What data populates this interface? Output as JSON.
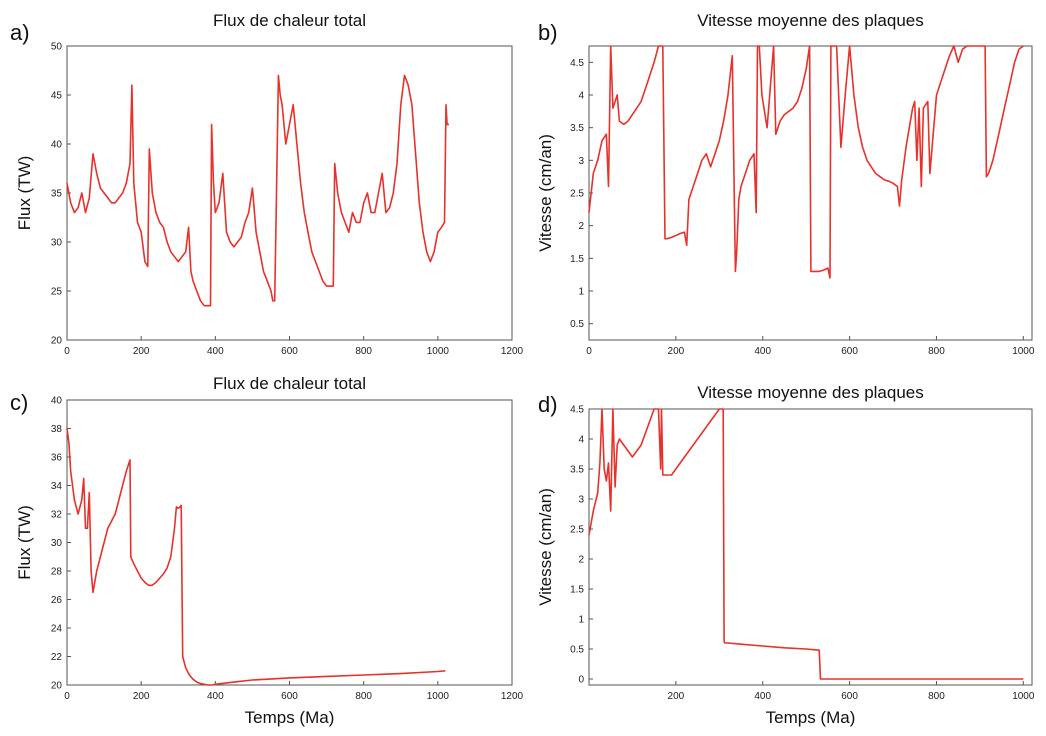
{
  "chart_data": [
    {
      "panel": "a)",
      "type": "line",
      "title": "Flux de chaleur total",
      "xlabel": "",
      "ylabel": "Flux (TW)",
      "xlim": [
        0,
        1200
      ],
      "ylim": [
        20,
        50
      ],
      "xticks": [
        "0",
        "200",
        "400",
        "600",
        "800",
        "1000",
        "1200"
      ],
      "yticks": [
        "20",
        "25",
        "30",
        "35",
        "40",
        "45",
        "50"
      ],
      "color": "#e8312a",
      "series": [
        {
          "x": [
            0,
            10,
            20,
            30,
            40,
            50,
            60,
            70,
            80,
            90,
            100,
            110,
            120,
            130,
            140,
            150,
            160,
            170,
            175,
            180,
            190,
            200,
            210,
            218,
            222,
            230,
            240,
            250,
            260,
            270,
            280,
            290,
            300,
            310,
            320,
            328,
            334,
            340,
            350,
            360,
            370,
            380,
            387,
            390,
            395,
            400,
            410,
            420,
            430,
            440,
            450,
            460,
            470,
            480,
            490,
            500,
            510,
            520,
            530,
            540,
            550,
            555,
            560,
            565,
            570,
            575,
            580,
            590,
            600,
            610,
            620,
            630,
            640,
            650,
            660,
            670,
            680,
            690,
            700,
            710,
            718,
            722,
            730,
            740,
            750,
            760,
            770,
            780,
            790,
            800,
            810,
            820,
            830,
            840,
            850,
            860,
            870,
            880,
            890,
            900,
            910,
            920,
            930,
            940,
            950,
            960,
            970,
            980,
            990,
            1000,
            1010,
            1018,
            1022,
            1025,
            1030
          ],
          "y": [
            36,
            34,
            33,
            33.5,
            35,
            33,
            34.5,
            39,
            37,
            35.5,
            35,
            34.5,
            34,
            34,
            34.5,
            35,
            36,
            38,
            46,
            36,
            32,
            31,
            28,
            27.5,
            39.5,
            35,
            33,
            32,
            31.5,
            30,
            29,
            28.5,
            28,
            28.5,
            29,
            31.5,
            27,
            26,
            25,
            24,
            23.5,
            23.5,
            23.5,
            42,
            36,
            33,
            34,
            37,
            31,
            30,
            29.5,
            30,
            30.5,
            32,
            33,
            35.5,
            31,
            29,
            27,
            26,
            25,
            24,
            24,
            35,
            47,
            45,
            44,
            40,
            42,
            44,
            40,
            36,
            33,
            31,
            29,
            28,
            27,
            26,
            25.5,
            25.5,
            25.5,
            38,
            35,
            33,
            32,
            31,
            33,
            32,
            32,
            34,
            35,
            33,
            33,
            35,
            37,
            33,
            33.5,
            35,
            38,
            44,
            47,
            46,
            44,
            39,
            34,
            31,
            29,
            28,
            29,
            31,
            31.5,
            32,
            44,
            42,
            42
          ]
        }
      ]
    },
    {
      "panel": "b)",
      "type": "line",
      "title": "Vitesse moyenne des plaques",
      "xlabel": "",
      "ylabel": "Vitesse (cm/an)",
      "xlim": [
        0,
        1020
      ],
      "ylim": [
        0.25,
        4.75
      ],
      "xticks": [
        "0",
        "200",
        "400",
        "600",
        "800",
        "1000"
      ],
      "yticks": [
        "0.5",
        "1",
        "1.5",
        "2",
        "2.5",
        "3",
        "3.5",
        "4",
        "4.5"
      ],
      "color": "#e8312a",
      "series": [
        {
          "x": [
            0,
            10,
            20,
            30,
            40,
            45,
            50,
            55,
            60,
            65,
            70,
            80,
            90,
            100,
            110,
            120,
            130,
            140,
            150,
            160,
            170,
            175,
            176,
            180,
            190,
            200,
            210,
            220,
            225,
            230,
            240,
            250,
            260,
            270,
            280,
            290,
            300,
            310,
            320,
            330,
            335,
            337,
            340,
            345,
            350,
            360,
            370,
            380,
            385,
            388,
            392,
            398,
            410,
            425,
            430,
            440,
            450,
            460,
            470,
            480,
            490,
            500,
            508,
            511,
            515,
            520,
            530,
            540,
            550,
            555,
            557,
            560,
            570,
            580,
            590,
            600,
            610,
            620,
            630,
            640,
            650,
            660,
            670,
            680,
            690,
            700,
            710,
            715,
            720,
            730,
            740,
            745,
            750,
            755,
            760,
            765,
            770,
            780,
            785,
            790,
            800,
            810,
            820,
            830,
            840,
            850,
            860,
            870,
            880,
            890,
            900,
            910,
            912,
            915,
            920,
            930,
            940,
            950,
            960,
            970,
            980,
            990,
            1000
          ],
          "y": [
            2.2,
            2.8,
            3.0,
            3.3,
            3.4,
            2.6,
            4.75,
            3.8,
            3.9,
            4.0,
            3.6,
            3.55,
            3.6,
            3.7,
            3.8,
            3.9,
            4.1,
            4.3,
            4.5,
            4.75,
            4.75,
            1.8,
            1.8,
            1.8,
            1.82,
            1.85,
            1.88,
            1.9,
            1.7,
            2.4,
            2.6,
            2.8,
            3.0,
            3.1,
            2.9,
            3.1,
            3.3,
            3.6,
            4.0,
            4.6,
            2.2,
            1.3,
            1.6,
            2.4,
            2.6,
            2.8,
            3.0,
            3.1,
            2.2,
            4.75,
            4.75,
            4.0,
            3.5,
            4.75,
            3.4,
            3.6,
            3.7,
            3.75,
            3.8,
            3.9,
            4.1,
            4.4,
            4.75,
            1.3,
            1.3,
            1.3,
            1.3,
            1.32,
            1.35,
            1.2,
            4.75,
            4.75,
            4.75,
            3.2,
            4.0,
            4.75,
            4.0,
            3.5,
            3.2,
            3.0,
            2.9,
            2.8,
            2.75,
            2.7,
            2.68,
            2.65,
            2.6,
            2.3,
            2.7,
            3.2,
            3.6,
            3.8,
            3.9,
            3.0,
            3.8,
            2.6,
            3.8,
            3.9,
            2.8,
            3.2,
            4.0,
            4.2,
            4.4,
            4.6,
            4.75,
            4.5,
            4.7,
            4.75,
            4.75,
            4.75,
            4.75,
            4.75,
            4.75,
            2.75,
            2.8,
            3.0,
            3.3,
            3.6,
            3.9,
            4.2,
            4.5,
            4.7,
            4.75
          ]
        }
      ]
    },
    {
      "panel": "c)",
      "type": "line",
      "title": "Flux de chaleur total",
      "xlabel": "Temps (Ma)",
      "ylabel": "Flux (TW)",
      "xlim": [
        0,
        1200
      ],
      "ylim": [
        20,
        40
      ],
      "xticks": [
        "0",
        "200",
        "400",
        "600",
        "800",
        "1000",
        "1200"
      ],
      "yticks": [
        "20",
        "22",
        "24",
        "26",
        "28",
        "30",
        "32",
        "34",
        "36",
        "38",
        "40"
      ],
      "color": "#e8312a",
      "series": [
        {
          "x": [
            0,
            5,
            10,
            20,
            30,
            40,
            45,
            50,
            55,
            60,
            65,
            70,
            80,
            90,
            100,
            110,
            120,
            130,
            140,
            150,
            160,
            170,
            172,
            180,
            190,
            200,
            210,
            220,
            230,
            240,
            250,
            260,
            270,
            280,
            290,
            295,
            300,
            305,
            308,
            312,
            320,
            330,
            340,
            350,
            360,
            370,
            380,
            390,
            400,
            450,
            500,
            600,
            700,
            800,
            900,
            1000,
            1020
          ],
          "y": [
            38,
            37,
            35,
            33,
            32,
            33,
            34.5,
            31,
            31,
            33.5,
            28,
            26.5,
            28,
            29,
            30,
            31,
            31.5,
            32,
            33,
            34,
            35,
            35.8,
            29,
            28.5,
            28,
            27.5,
            27.2,
            27,
            27,
            27.2,
            27.5,
            27.8,
            28.2,
            29,
            31,
            32.5,
            32.4,
            32.5,
            32.6,
            22,
            21.2,
            20.7,
            20.4,
            20.2,
            20.1,
            20.05,
            20.0,
            20.0,
            20.05,
            20.2,
            20.35,
            20.5,
            20.6,
            20.7,
            20.8,
            20.95,
            21.0
          ]
        }
      ]
    },
    {
      "panel": "d)",
      "type": "line",
      "title": "Vitesse moyenne des plaques",
      "xlabel": "Temps (Ma)",
      "ylabel": "Vitesse (cm/an)",
      "xlim": [
        0,
        1020
      ],
      "ylim": [
        -0.1,
        4.5
      ],
      "xticks": [
        "200",
        "400",
        "600",
        "800",
        "1000"
      ],
      "yticks": [
        "0",
        "0.5",
        "1",
        "1.5",
        "2",
        "2.5",
        "3",
        "3.5",
        "4",
        "4.5"
      ],
      "color": "#e8312a",
      "series": [
        {
          "x": [
            0,
            10,
            20,
            25,
            30,
            35,
            40,
            45,
            50,
            55,
            60,
            65,
            70,
            80,
            90,
            100,
            110,
            120,
            130,
            140,
            150,
            160,
            165,
            167,
            170,
            180,
            190,
            200,
            210,
            220,
            230,
            240,
            250,
            260,
            270,
            280,
            290,
            300,
            305,
            309,
            311,
            313,
            320,
            350,
            400,
            450,
            500,
            530,
            533,
            540,
            600,
            800,
            1000
          ],
          "y": [
            2.4,
            2.8,
            3.1,
            3.6,
            4.5,
            3.5,
            3.3,
            3.6,
            2.8,
            4.5,
            3.2,
            3.9,
            4.0,
            3.9,
            3.8,
            3.7,
            3.8,
            3.9,
            4.1,
            4.3,
            4.5,
            4.5,
            3.5,
            4.5,
            3.4,
            3.4,
            3.4,
            3.5,
            3.6,
            3.7,
            3.8,
            3.9,
            4.0,
            4.1,
            4.2,
            4.3,
            4.4,
            4.5,
            4.5,
            4.5,
            0.62,
            0.6,
            0.6,
            0.58,
            0.55,
            0.52,
            0.5,
            0.48,
            0.0,
            0.0,
            0.0,
            0.0,
            0.0
          ]
        }
      ]
    }
  ]
}
